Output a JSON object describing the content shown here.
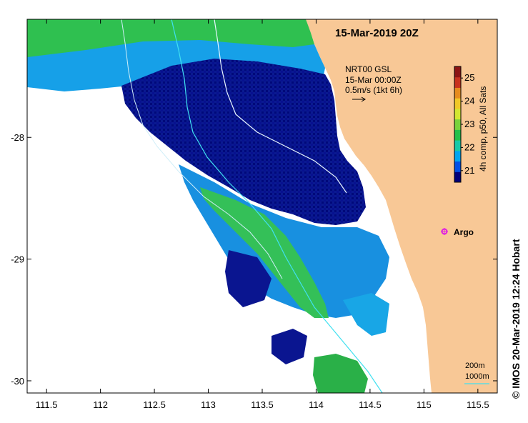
{
  "map": {
    "title": "15-Mar-2019 20Z",
    "velocity_legend": {
      "line1": "NRT00 GSL",
      "line2": "15-Mar 00:00Z",
      "line3": "0.5m/s (1kt 6h)"
    },
    "colorbar": {
      "label": "4h comp, p50, All Sats",
      "ticks": [
        "25",
        "24",
        "23",
        "22",
        "21"
      ],
      "range": [
        20.5,
        25.5
      ],
      "colors": [
        "#00007a",
        "#0050e6",
        "#00a5f0",
        "#17c8a8",
        "#22c04a",
        "#78d23c",
        "#d2e632",
        "#f0c828",
        "#e68c1e",
        "#c8321e",
        "#8c1414"
      ]
    },
    "argo_label": "Argo",
    "argo_color": "#e020e0",
    "contour_legend": {
      "shallow": "200m",
      "deep": "1000m"
    },
    "credit": "© IMOS 20-Mar-2019 12:24 Hobart",
    "x_ticks": [
      {
        "lon": 111.5,
        "label": "111.5"
      },
      {
        "lon": 112,
        "label": "112"
      },
      {
        "lon": 112.5,
        "label": "112.5"
      },
      {
        "lon": 113,
        "label": "113"
      },
      {
        "lon": 113.5,
        "label": "113.5"
      },
      {
        "lon": 114,
        "label": "114"
      },
      {
        "lon": 114.5,
        "label": "114.5"
      },
      {
        "lon": 115,
        "label": "115"
      },
      {
        "lon": 115.5,
        "label": "115.5"
      }
    ],
    "y_ticks": [
      {
        "lat": -28,
        "label": "-28"
      },
      {
        "lat": -29,
        "label": "-29"
      },
      {
        "lat": -30,
        "label": "-30"
      }
    ],
    "lon_range": [
      111.32,
      115.68
    ],
    "lat_range": [
      -30.1,
      -27.03
    ],
    "land_color": "#f8c896",
    "ocean_color": "#ffffff"
  }
}
